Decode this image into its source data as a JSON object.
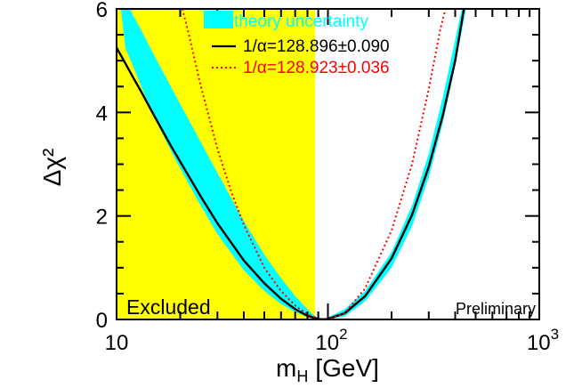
{
  "chart_data": {
    "type": "line",
    "title": "",
    "xlabel_main": "m",
    "xlabel_sub": "H",
    "xlabel_unit": "[GeV]",
    "ylabel": "Δχ²",
    "x_scale": "log",
    "xlim": [
      10,
      1000
    ],
    "ylim": [
      0,
      6
    ],
    "x_ticks": [
      {
        "value": 10,
        "label": "10",
        "sup": ""
      },
      {
        "value": 100,
        "label": "10",
        "sup": "2"
      },
      {
        "value": 1000,
        "label": "10",
        "sup": "3"
      }
    ],
    "y_ticks": [
      0,
      2,
      4,
      6
    ],
    "excluded_region": {
      "x_min": 10,
      "x_max": 87,
      "label": "Excluded",
      "color": "#ffff00"
    },
    "corner_label": "Preliminary",
    "band": {
      "name": "theory uncertainty",
      "color": "#00ffff",
      "lower": [
        [
          10.5,
          6.0
        ],
        [
          11,
          5.25
        ],
        [
          12,
          4.88
        ],
        [
          13,
          4.53
        ],
        [
          15,
          3.92
        ],
        [
          18,
          3.27
        ],
        [
          20,
          2.92
        ],
        [
          25,
          2.2
        ],
        [
          30,
          1.65
        ],
        [
          40,
          0.95
        ],
        [
          50,
          0.55
        ],
        [
          60,
          0.3
        ],
        [
          70,
          0.14
        ],
        [
          80,
          0.05
        ],
        [
          87,
          0.0
        ],
        [
          90,
          0.0
        ],
        [
          100,
          0.04
        ],
        [
          120,
          0.2
        ],
        [
          150,
          0.55
        ],
        [
          200,
          1.3
        ],
        [
          250,
          2.2
        ],
        [
          300,
          3.2
        ],
        [
          350,
          4.3
        ],
        [
          400,
          5.4
        ],
        [
          430,
          6.0
        ]
      ],
      "upper": [
        [
          11.6,
          6.0
        ],
        [
          12,
          5.87
        ],
        [
          13,
          5.61
        ],
        [
          15,
          5.12
        ],
        [
          18,
          4.51
        ],
        [
          20,
          4.16
        ],
        [
          25,
          3.43
        ],
        [
          30,
          2.83
        ],
        [
          40,
          1.9
        ],
        [
          50,
          1.25
        ],
        [
          60,
          0.8
        ],
        [
          70,
          0.45
        ],
        [
          80,
          0.2
        ],
        [
          87,
          0.06
        ],
        [
          92,
          0.0
        ],
        [
          100,
          0.0
        ],
        [
          120,
          0.06
        ],
        [
          150,
          0.35
        ],
        [
          200,
          1.0
        ],
        [
          250,
          1.8
        ],
        [
          300,
          2.75
        ],
        [
          350,
          3.8
        ],
        [
          400,
          4.9
        ],
        [
          450,
          6.0
        ]
      ]
    },
    "series": [
      {
        "name": "1/α=128.896±0.090",
        "color": "#000000",
        "dash": "solid",
        "points": [
          [
            10,
            5.25
          ],
          [
            11,
            4.95
          ],
          [
            12,
            4.67
          ],
          [
            13,
            4.42
          ],
          [
            15,
            3.95
          ],
          [
            18,
            3.37
          ],
          [
            20,
            3.05
          ],
          [
            25,
            2.38
          ],
          [
            30,
            1.86
          ],
          [
            40,
            1.14
          ],
          [
            50,
            0.7
          ],
          [
            60,
            0.4
          ],
          [
            70,
            0.2
          ],
          [
            80,
            0.07
          ],
          [
            90,
            0.01
          ],
          [
            95,
            0.0
          ],
          [
            100,
            0.01
          ],
          [
            120,
            0.12
          ],
          [
            150,
            0.45
          ],
          [
            200,
            1.18
          ],
          [
            250,
            2.02
          ],
          [
            300,
            2.95
          ],
          [
            350,
            3.95
          ],
          [
            400,
            5.0
          ],
          [
            440,
            6.0
          ]
        ]
      },
      {
        "name": "1/α=128.923±0.036",
        "color": "#ff0000",
        "dash": "dotted",
        "points": [
          [
            20.5,
            6.0
          ],
          [
            22,
            5.5
          ],
          [
            25,
            4.52
          ],
          [
            30,
            3.3
          ],
          [
            35,
            2.45
          ],
          [
            40,
            1.83
          ],
          [
            50,
            1.0
          ],
          [
            60,
            0.55
          ],
          [
            70,
            0.27
          ],
          [
            80,
            0.1
          ],
          [
            90,
            0.02
          ],
          [
            100,
            0.0
          ],
          [
            120,
            0.12
          ],
          [
            150,
            0.6
          ],
          [
            200,
            1.72
          ],
          [
            250,
            3.0
          ],
          [
            300,
            4.45
          ],
          [
            340,
            5.6
          ],
          [
            360,
            6.0
          ]
        ]
      }
    ]
  }
}
